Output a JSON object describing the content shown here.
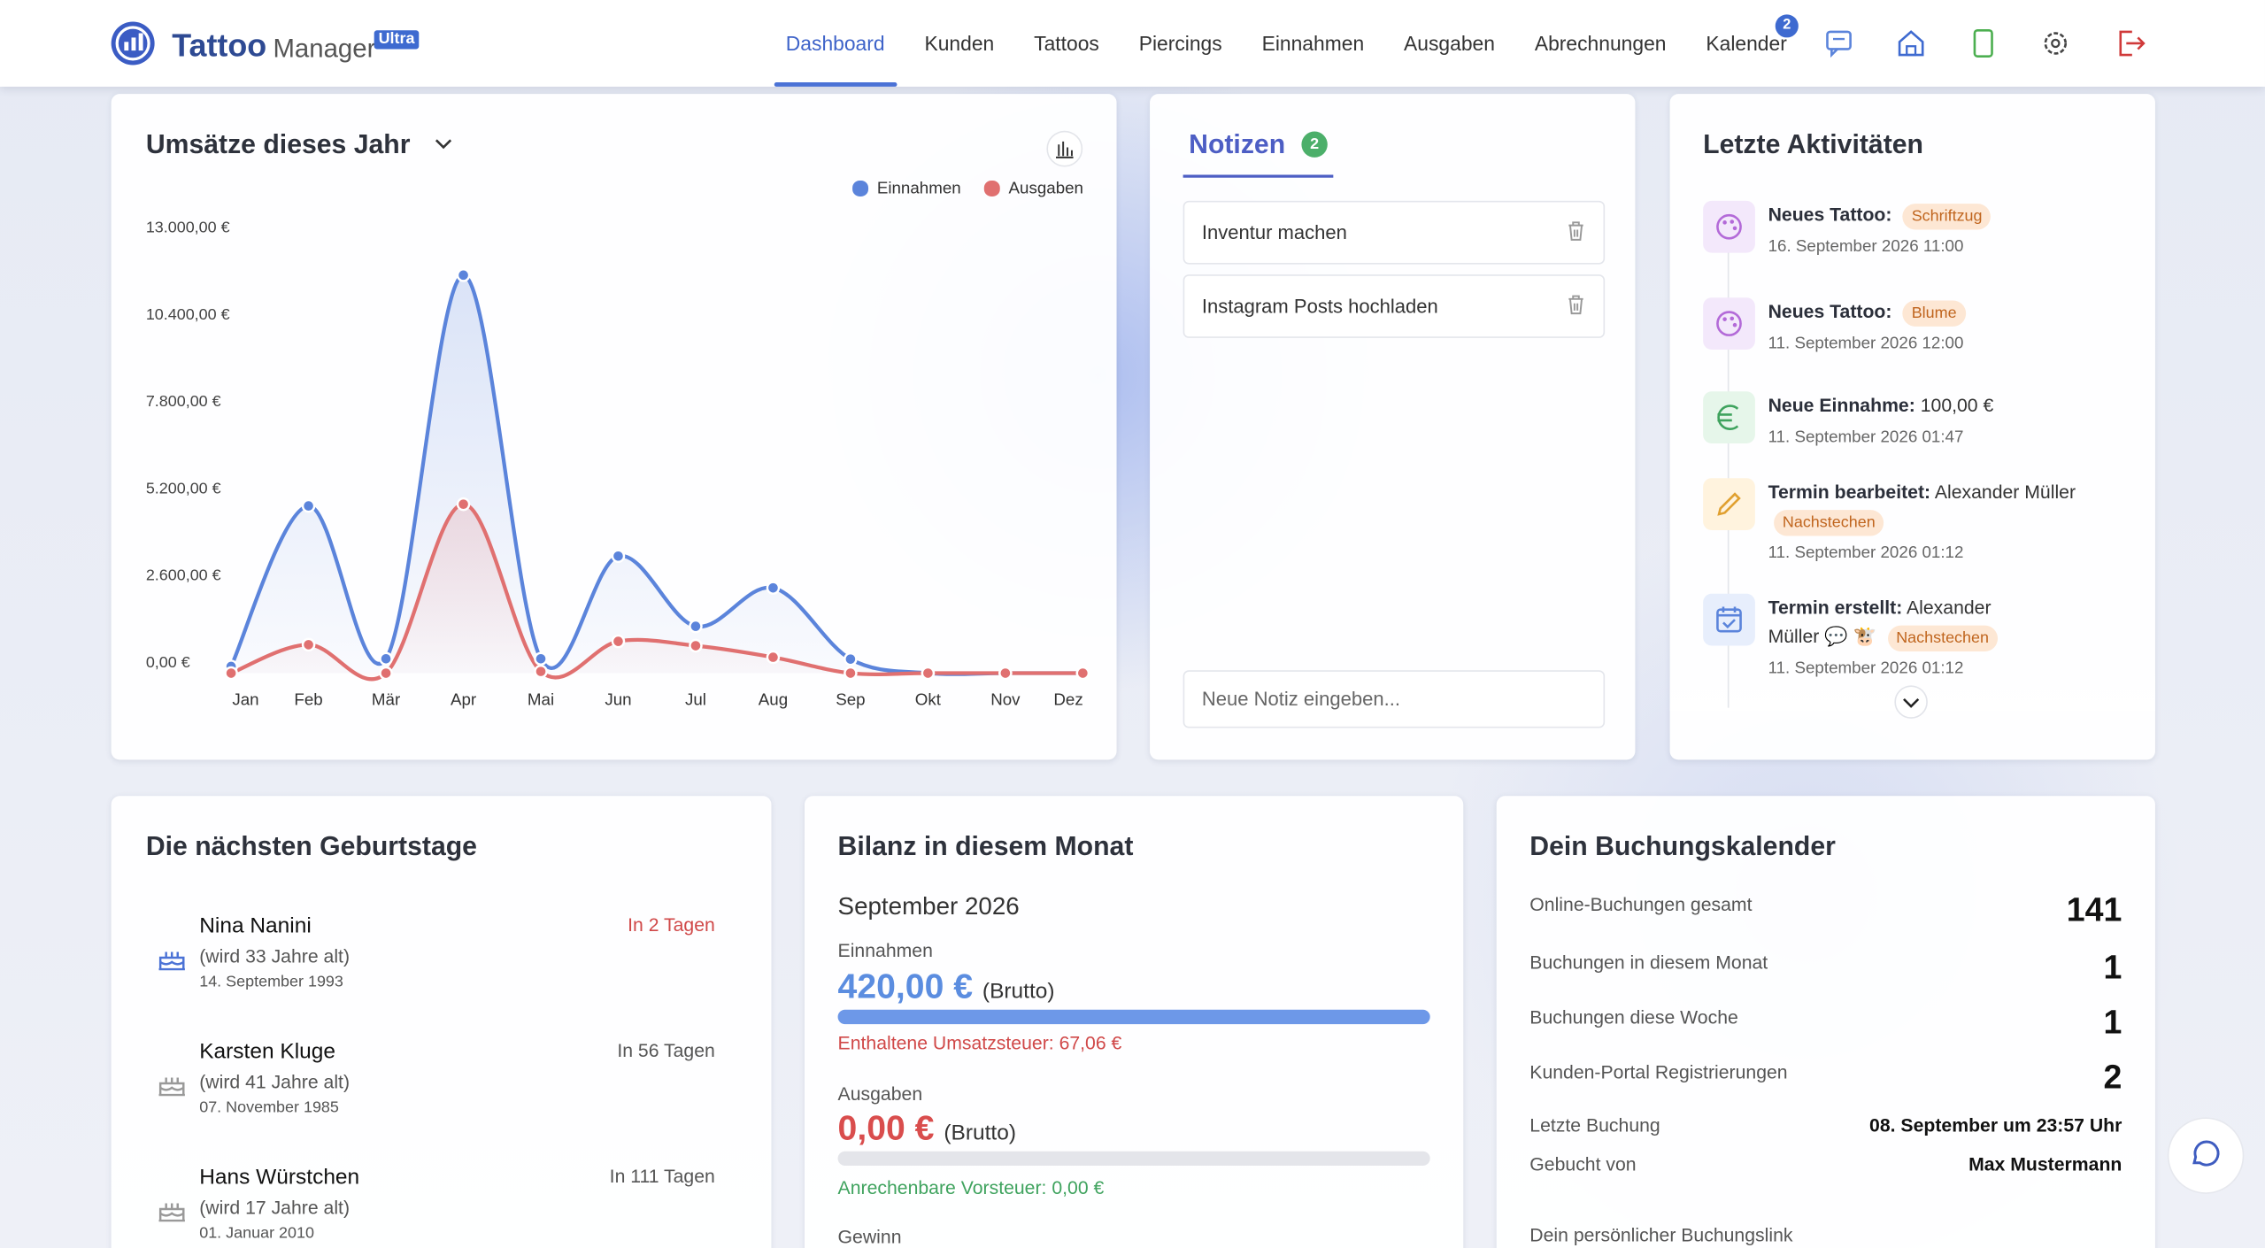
{
  "header": {
    "logo_main": "Tattoo",
    "logo_sub": "Manager",
    "logo_badge": "Ultra",
    "nav": [
      "Dashboard",
      "Kunden",
      "Tattoos",
      "Piercings",
      "Einnahmen",
      "Ausgaben",
      "Abrechnungen",
      "Kalender"
    ],
    "calendar_badge": "2"
  },
  "chart_data": {
    "type": "line",
    "title": "Umsätze dieses Jahr",
    "categories": [
      "Jan",
      "Feb",
      "Mär",
      "Apr",
      "Mai",
      "Jun",
      "Jul",
      "Aug",
      "Sep",
      "Okt",
      "Nov",
      "Dez"
    ],
    "series": [
      {
        "name": "Einnahmen",
        "color": "#5b84db",
        "values": [
          200,
          5000,
          430,
          11900,
          430,
          3500,
          1400,
          2550,
          420,
          0,
          0,
          0
        ]
      },
      {
        "name": "Ausgaben",
        "color": "#e07070",
        "values": [
          0,
          850,
          0,
          5050,
          50,
          950,
          820,
          475,
          0,
          0,
          0,
          0
        ]
      }
    ],
    "ylim": [
      0,
      13000
    ],
    "yticks": [
      {
        "value": 0,
        "label": "0,00 €"
      },
      {
        "value": 2600,
        "label": "2.600,00 €"
      },
      {
        "value": 5200,
        "label": "5.200,00 €"
      },
      {
        "value": 7800,
        "label": "7.800,00 €"
      },
      {
        "value": 10400,
        "label": "10.400,00 €"
      },
      {
        "value": 13000,
        "label": "13.000,00 €"
      }
    ],
    "grid": false,
    "legend": "top-right"
  },
  "notes": {
    "title": "Notizen",
    "count": "2",
    "items": [
      "Inventur machen",
      "Instagram Posts hochladen"
    ],
    "placeholder": "Neue Notiz eingeben..."
  },
  "activities": {
    "title": "Letzte Aktivitäten",
    "items": [
      {
        "label": "Neues Tattoo:",
        "tag": "Schriftzug",
        "time": "16. September 2026 11:00"
      },
      {
        "label": "Neues Tattoo:",
        "tag": "Blume",
        "time": "11. September 2026 12:00"
      },
      {
        "label": "Neue Einnahme:",
        "text": "100,00 €",
        "time": "11. September 2026 01:47"
      },
      {
        "label": "Termin bearbeitet:",
        "text": "Alexander Müller",
        "tag": "Nachstechen",
        "time": "11. September 2026 01:12"
      },
      {
        "label": "Termin erstellt:",
        "text": "Alexander Müller 💬 🐮",
        "tag": "Nachstechen",
        "time": "11. September 2026 01:12"
      }
    ]
  },
  "birthdays": {
    "title": "Die nächsten Geburtstage",
    "items": [
      {
        "name": "Nina Nanini",
        "age": "(wird 33 Jahre alt)",
        "date": "14. September 1993",
        "in": "In 2 Tagen"
      },
      {
        "name": "Karsten Kluge",
        "age": "(wird 41 Jahre alt)",
        "date": "07. November 1985",
        "in": "In 56 Tagen"
      },
      {
        "name": "Hans Würstchen",
        "age": "(wird 17 Jahre alt)",
        "date": "01. Januar 2010",
        "in": "In 111 Tagen"
      }
    ]
  },
  "balance": {
    "title": "Bilanz in diesem Monat",
    "month": "September 2026",
    "income_label": "Einnahmen",
    "income": "420,00 €",
    "brutto": "(Brutto)",
    "vat": "Enthaltene Umsatzsteuer: 67,06 €",
    "expense_label": "Ausgaben",
    "expense": "0,00 €",
    "input_vat": "Anrechenbare Vorsteuer: 0,00 €",
    "profit_label": "Gewinn"
  },
  "booking": {
    "title": "Dein Buchungskalender",
    "rows": [
      {
        "label": "Online-Buchungen gesamt",
        "value": "141"
      },
      {
        "label": "Buchungen in diesem Monat",
        "value": "1"
      },
      {
        "label": "Buchungen diese Woche",
        "value": "1"
      },
      {
        "label": "Kunden-Portal Registrierungen",
        "value": "2"
      }
    ],
    "last_label": "Letzte Buchung",
    "last_value": "08. September um 23:57 Uhr",
    "by_label": "Gebucht von",
    "by_value": "Max Mustermann",
    "link_label": "Dein persönlicher Buchungslink"
  }
}
